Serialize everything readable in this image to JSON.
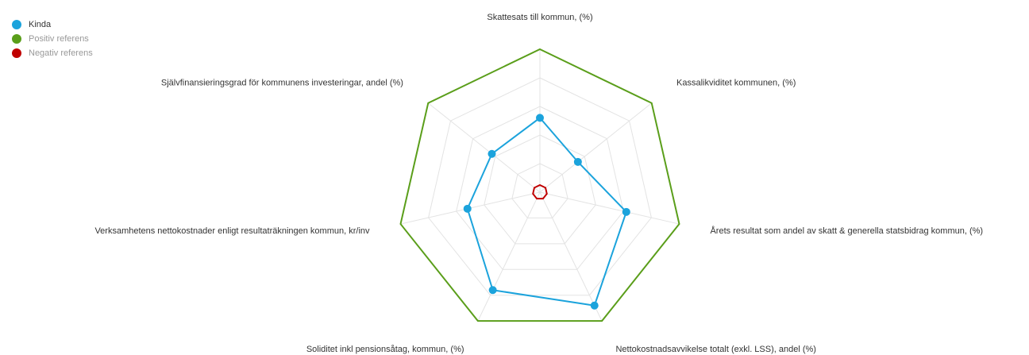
{
  "chart_data": {
    "type": "radar",
    "categories": [
      "Skattesats till kommun, (%)",
      "Kassalikviditet kommunen, (%)",
      "Årets resultat som andel av skatt & generella statsbidrag kommun, (%)",
      "Nettokostnadsavvikelse totalt (exkl. LSS), andel (%)",
      "Soliditet inkl pensionsåtag, kommun, (%)",
      "Verksamhetens nettokostnader enligt resultaträkningen kommun, kr/inv",
      "Självfinansieringsgrad för kommunens investeringar, andel (%)"
    ],
    "series": [
      {
        "name": "Kinda",
        "color": "#1ba3dc",
        "values": [
          52,
          34,
          62,
          88,
          76,
          52,
          43
        ]
      },
      {
        "name": "Positiv referens",
        "color": "#5a9e1a",
        "values": [
          100,
          100,
          100,
          100,
          100,
          100,
          100
        ]
      },
      {
        "name": "Negativ referens",
        "color": "#c00000",
        "values": [
          5,
          5,
          5,
          5,
          5,
          5,
          5
        ]
      }
    ],
    "ylim": [
      0,
      100
    ],
    "yticks": [
      0,
      20,
      40,
      60,
      80,
      100
    ],
    "grid": true,
    "legend": "top-left"
  }
}
